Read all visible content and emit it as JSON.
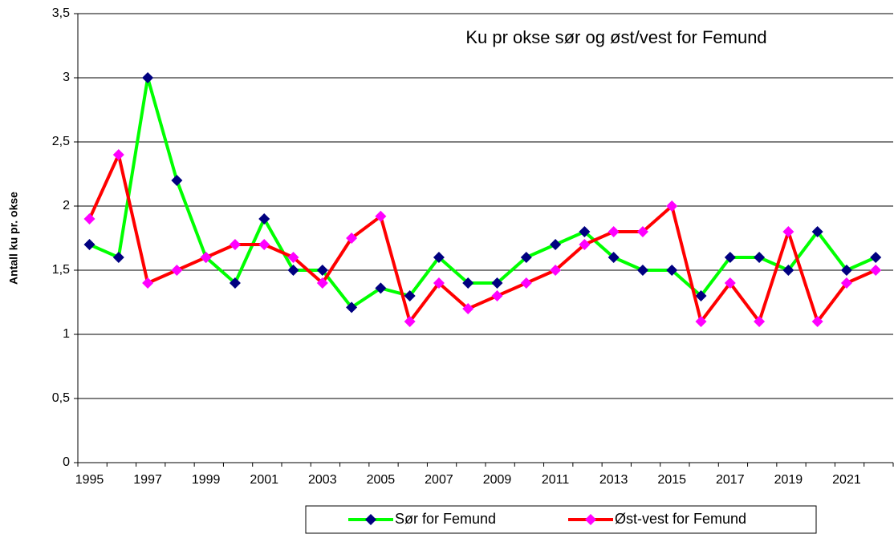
{
  "chart_data": {
    "type": "line",
    "title": "Ku pr okse sør og øst/vest for Femund",
    "y_label": "Antall ku pr. okse",
    "categories": [
      "1995",
      null,
      "1997",
      null,
      "1999",
      null,
      "2001",
      null,
      "2003",
      null,
      "2005",
      null,
      "2007",
      null,
      "2009",
      null,
      "2011",
      null,
      "2013",
      null,
      "2015",
      null,
      "2017",
      null,
      "2019",
      null,
      "2021",
      null
    ],
    "series": [
      {
        "name": "Sør for Femund",
        "color": "#00ff00",
        "marker_color": "#000080",
        "values": [
          1.7,
          1.6,
          3.0,
          2.2,
          1.6,
          1.4,
          1.9,
          1.5,
          1.5,
          1.21,
          1.36,
          1.3,
          1.6,
          1.4,
          1.4,
          1.6,
          1.7,
          1.8,
          1.6,
          1.5,
          1.5,
          1.3,
          1.6,
          1.6,
          1.5,
          1.8,
          1.5,
          1.6
        ]
      },
      {
        "name": "Øst-vest for Femund",
        "color": "#ff0000",
        "marker_color": "#ff00ff",
        "values": [
          1.9,
          2.4,
          1.4,
          1.5,
          1.6,
          1.7,
          1.7,
          1.6,
          1.4,
          1.75,
          1.92,
          1.1,
          1.4,
          1.2,
          1.3,
          1.4,
          1.5,
          1.7,
          1.8,
          1.8,
          2.0,
          1.1,
          1.4,
          1.1,
          1.8,
          1.1,
          1.4,
          1.5
        ]
      }
    ],
    "ylim": [
      0,
      3.5
    ],
    "yticks": [
      0,
      {
        "value": 0.5,
        "label": "0,5"
      },
      1,
      {
        "value": 1.5,
        "label": "1,5"
      },
      2,
      {
        "value": 2.5,
        "label": "2,5"
      },
      3,
      {
        "value": 3.5,
        "label": "3,5"
      }
    ],
    "grid": true,
    "legend": "bottom"
  }
}
